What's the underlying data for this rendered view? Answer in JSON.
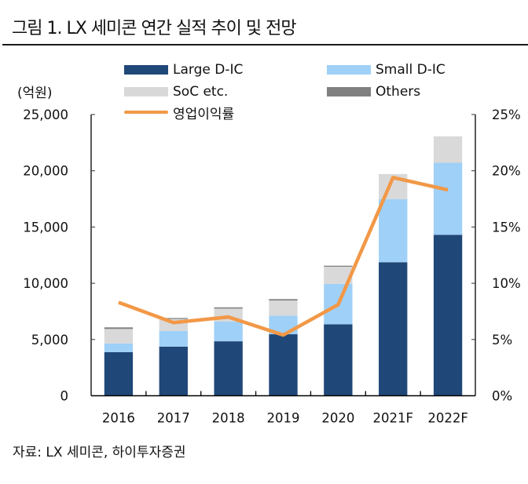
{
  "title": "그림 1. LX 세미콘 연간 실적 추이 및 전망",
  "source": "자료: LX 세미콘, 하이투자증권",
  "colors": {
    "large": "#1f4878",
    "small": "#9fd0f7",
    "soc": "#d9d9d9",
    "others": "#808080",
    "margin_line": "#f29847",
    "axis": "#000000"
  },
  "chart_data": {
    "type": "bar",
    "subtype": "stacked bar + line (secondary axis)",
    "title": "LX 세미콘 연간 실적 추이 및 전망",
    "categories": [
      "2016",
      "2017",
      "2018",
      "2019",
      "2020",
      "2021F",
      "2022F"
    ],
    "ylabel": "(억원)",
    "y_unit_label": "(억원)",
    "ylim": [
      0,
      25000
    ],
    "yticks": [
      0,
      5000,
      10000,
      15000,
      20000,
      25000
    ],
    "ytick_labels": [
      "0",
      "5,000",
      "10,000",
      "15,000",
      "20,000",
      "25,000"
    ],
    "y2lim": [
      0,
      25
    ],
    "y2ticks": [
      0,
      5,
      10,
      15,
      20,
      25
    ],
    "y2tick_labels": [
      "0%",
      "5%",
      "10%",
      "15%",
      "20%",
      "25%"
    ],
    "grid": false,
    "legend_position": "top",
    "series": [
      {
        "name": "Large D-IC",
        "key": "large",
        "type": "bar",
        "axis": "left",
        "values": [
          3880,
          4370,
          4840,
          5470,
          6350,
          11870,
          14310
        ]
      },
      {
        "name": "Small D-IC",
        "key": "small",
        "type": "bar",
        "axis": "left",
        "values": [
          770,
          1400,
          1750,
          1650,
          3600,
          5610,
          6400
        ]
      },
      {
        "name": "SoC etc.",
        "key": "soc",
        "type": "bar",
        "axis": "left",
        "values": [
          1290,
          1050,
          1160,
          1350,
          1520,
          2230,
          2350
        ]
      },
      {
        "name": "Others",
        "key": "others",
        "type": "bar",
        "axis": "left",
        "values": [
          140,
          90,
          110,
          120,
          90,
          0,
          0
        ]
      },
      {
        "name": "영업이익률",
        "key": "margin_line",
        "type": "line",
        "axis": "right",
        "unit": "%",
        "values": [
          8.3,
          6.5,
          7.0,
          5.4,
          8.1,
          19.4,
          18.3
        ]
      }
    ]
  },
  "legend": [
    {
      "label": "Large D-IC",
      "key": "large",
      "kind": "box"
    },
    {
      "label": "Small D-IC",
      "key": "small",
      "kind": "box"
    },
    {
      "label": "SoC etc.",
      "key": "soc",
      "kind": "box"
    },
    {
      "label": "Others",
      "key": "others",
      "kind": "box"
    },
    {
      "label": "영업이익률",
      "key": "margin_line",
      "kind": "line"
    }
  ]
}
